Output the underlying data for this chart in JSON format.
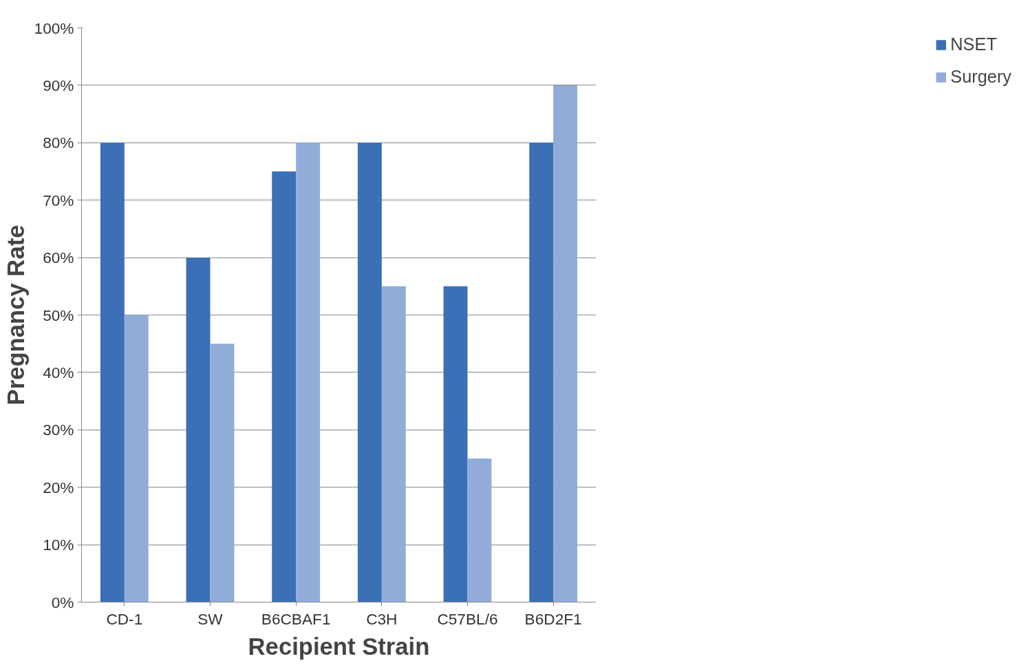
{
  "chart_data": {
    "type": "bar",
    "xlabel": "Recipient Strain",
    "ylabel": "Pregnancy Rate",
    "categories": [
      "CD-1",
      "SW",
      "B6CBAF1",
      "C3H",
      "C57BL/6",
      "B6D2F1"
    ],
    "series": [
      {
        "name": "NSET",
        "color": "#3b6fb6",
        "values": [
          80,
          60,
          75,
          80,
          55,
          80
        ]
      },
      {
        "name": "Surgery",
        "color": "#91acd8",
        "values": [
          50,
          45,
          80,
          55,
          25,
          90
        ]
      }
    ],
    "ylim": [
      0,
      100
    ],
    "yticks": [
      {
        "value": 0,
        "label": "0%"
      },
      {
        "value": 10,
        "label": "10%"
      },
      {
        "value": 20,
        "label": "20%"
      },
      {
        "value": 30,
        "label": "30%"
      },
      {
        "value": 40,
        "label": "40%"
      },
      {
        "value": 50,
        "label": "50%"
      },
      {
        "value": 60,
        "label": "60%"
      },
      {
        "value": 70,
        "label": "70%"
      },
      {
        "value": 80,
        "label": "80%"
      },
      {
        "value": 90,
        "label": "90%"
      },
      {
        "value": 100,
        "label": "100%"
      }
    ],
    "grid": "y",
    "legend": "right"
  }
}
